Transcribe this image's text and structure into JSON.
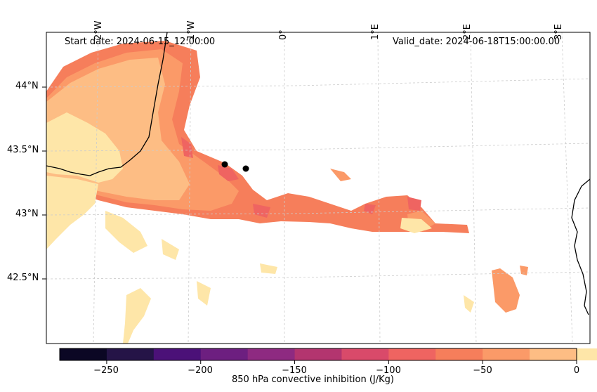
{
  "map": {
    "start_label": "Start date: 2024-06-15_12:00:00",
    "valid_label": "Valid_date: 2024-06-18T15:00:00.00",
    "lon_ticks": [
      "2°W",
      "1°W",
      "0°",
      "1°E",
      "2°E",
      "3°E"
    ],
    "lat_ticks": [
      "44°N",
      "43.5°N",
      "43°N",
      "42.5°N"
    ],
    "gridlines": true,
    "markers": 2
  },
  "colorbar": {
    "label": "850 hPa convective inhibition (J/Kg)",
    "ticks": [
      "−250",
      "−200",
      "−150",
      "−100",
      "−50",
      "0"
    ],
    "range": [
      -275,
      0
    ],
    "step": 25,
    "colors": [
      "#0b0724",
      "#251447",
      "#4b1178",
      "#6d1f80",
      "#8e2a81",
      "#b3356f",
      "#d94a6a",
      "#ef6461",
      "#f67e5b",
      "#fb9a68",
      "#fdbd84",
      "#fee6a8"
    ]
  }
}
